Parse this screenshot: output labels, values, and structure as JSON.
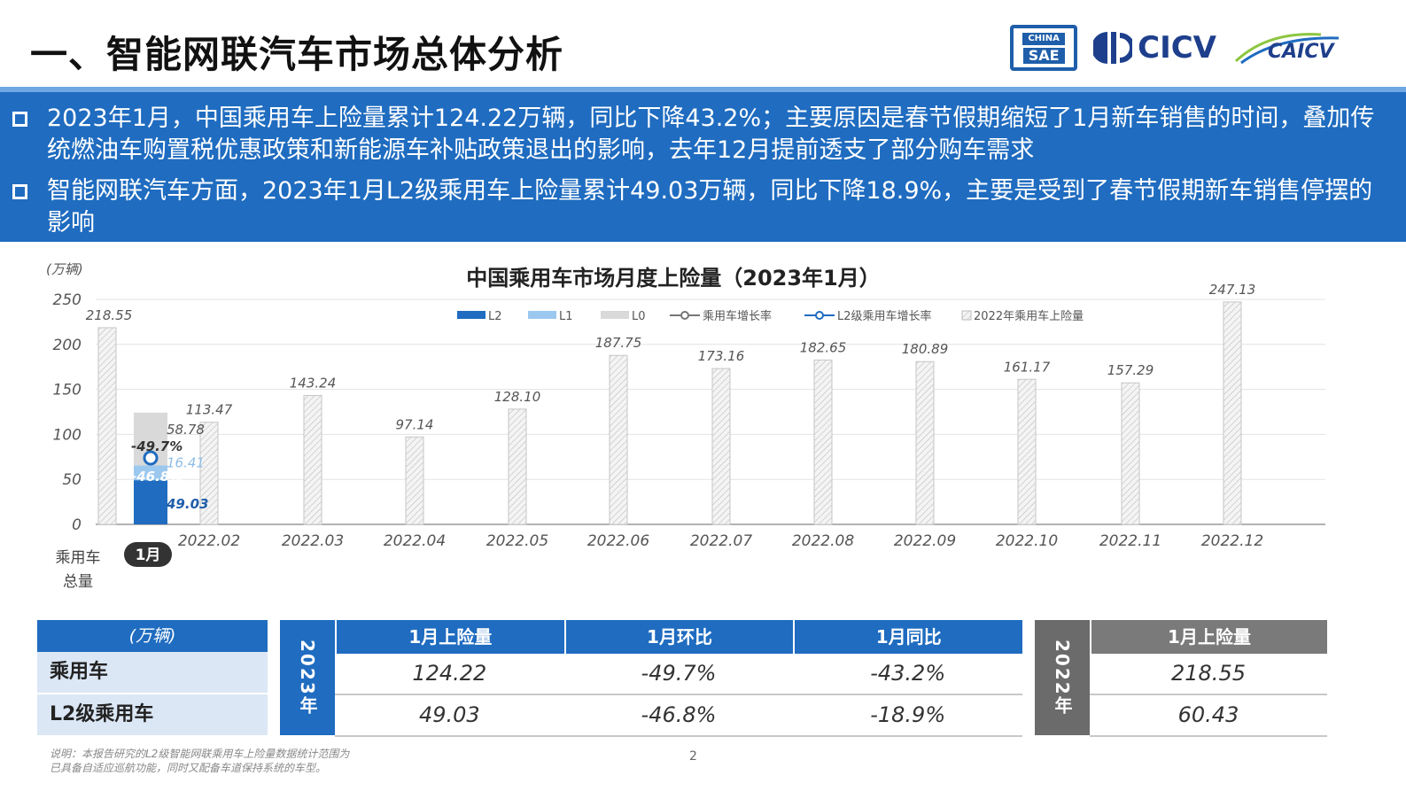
{
  "page": {
    "title": "一、智能网联汽车市场总体分析",
    "page_number": "2",
    "logos": {
      "sae_top": "CHINA",
      "sae_bottom": "SAE",
      "cicv": "CICV"
    }
  },
  "banner": {
    "bullets": [
      "2023年1月，中国乘用车上险量累计124.22万辆，同比下降43.2%；主要原因是春节假期缩短了1月新车销售的时间，叠加传统燃油车购置税优惠政策和新能源车补贴政策退出的影响，去年12月提前透支了部分购车需求",
      "智能网联汽车方面，2023年1月L2级乘用车上险量累计49.03万辆，同比下降18.9%，主要是受到了春节假期新车销售停摆的影响"
    ]
  },
  "chart_data": {
    "type": "bar",
    "title": "中国乘用车市场月度上险量（2023年1月）",
    "ylabel": "(万辆)",
    "ylim": [
      0,
      250
    ],
    "yticks": [
      0,
      50,
      100,
      150,
      200,
      250
    ],
    "grid": true,
    "legend_position": "top",
    "legend": [
      "L2",
      "L1",
      "L0",
      "乘用车增长率",
      "L2级乘用车增长率",
      "2022年乘用车上险量"
    ],
    "xcat_label": "乘用车\n总量",
    "current_month": {
      "label": "1月",
      "L2": 49.03,
      "L1": 16.41,
      "L0": 58.78,
      "L2_label": "49.03",
      "L1_label": "16.41",
      "L0_label": "58.78",
      "growth_passenger": "-49.7%",
      "growth_l2": "-46.8%",
      "growth_passenger_value": -49.7,
      "growth_l2_value": -46.8
    },
    "series_2022": {
      "categories": [
        "",
        "2022.02",
        "2022.03",
        "2022.04",
        "2022.05",
        "2022.06",
        "2022.07",
        "2022.08",
        "2022.09",
        "2022.10",
        "2022.11",
        "2022.12"
      ],
      "values": [
        218.55,
        113.47,
        143.24,
        97.14,
        128.1,
        187.75,
        173.16,
        182.65,
        180.89,
        161.17,
        157.29,
        247.13
      ],
      "labels": [
        "218.55",
        "113.47",
        "143.24",
        "97.14",
        "128.10",
        "187.75",
        "173.16",
        "182.65",
        "180.89",
        "161.17",
        "157.29",
        "247.13"
      ]
    },
    "colors": {
      "L2": "#1f6cc0",
      "L1": "#9cc8ef",
      "L0": "#d9d9d9",
      "growth": "#1f6cc0",
      "y2022": "#f0f0f0"
    }
  },
  "table_left": {
    "header": "(万辆)",
    "rows": [
      "乘用车",
      "L2级乘用车"
    ]
  },
  "table_2023": {
    "year": "2023年",
    "headers": [
      "1月上险量",
      "1月环比",
      "1月同比"
    ],
    "rows": [
      [
        "124.22",
        "-49.7%",
        "-43.2%"
      ],
      [
        "49.03",
        "-46.8%",
        "-18.9%"
      ]
    ]
  },
  "table_2022": {
    "year": "2022年",
    "header": "1月上险量",
    "rows": [
      "218.55",
      "60.43"
    ]
  },
  "footnote": "说明：本报告研究的L2级智能网联乘用车上险量数据统计范围为\n已具备自适应巡航功能，同时又配备车道保持系统的车型。"
}
